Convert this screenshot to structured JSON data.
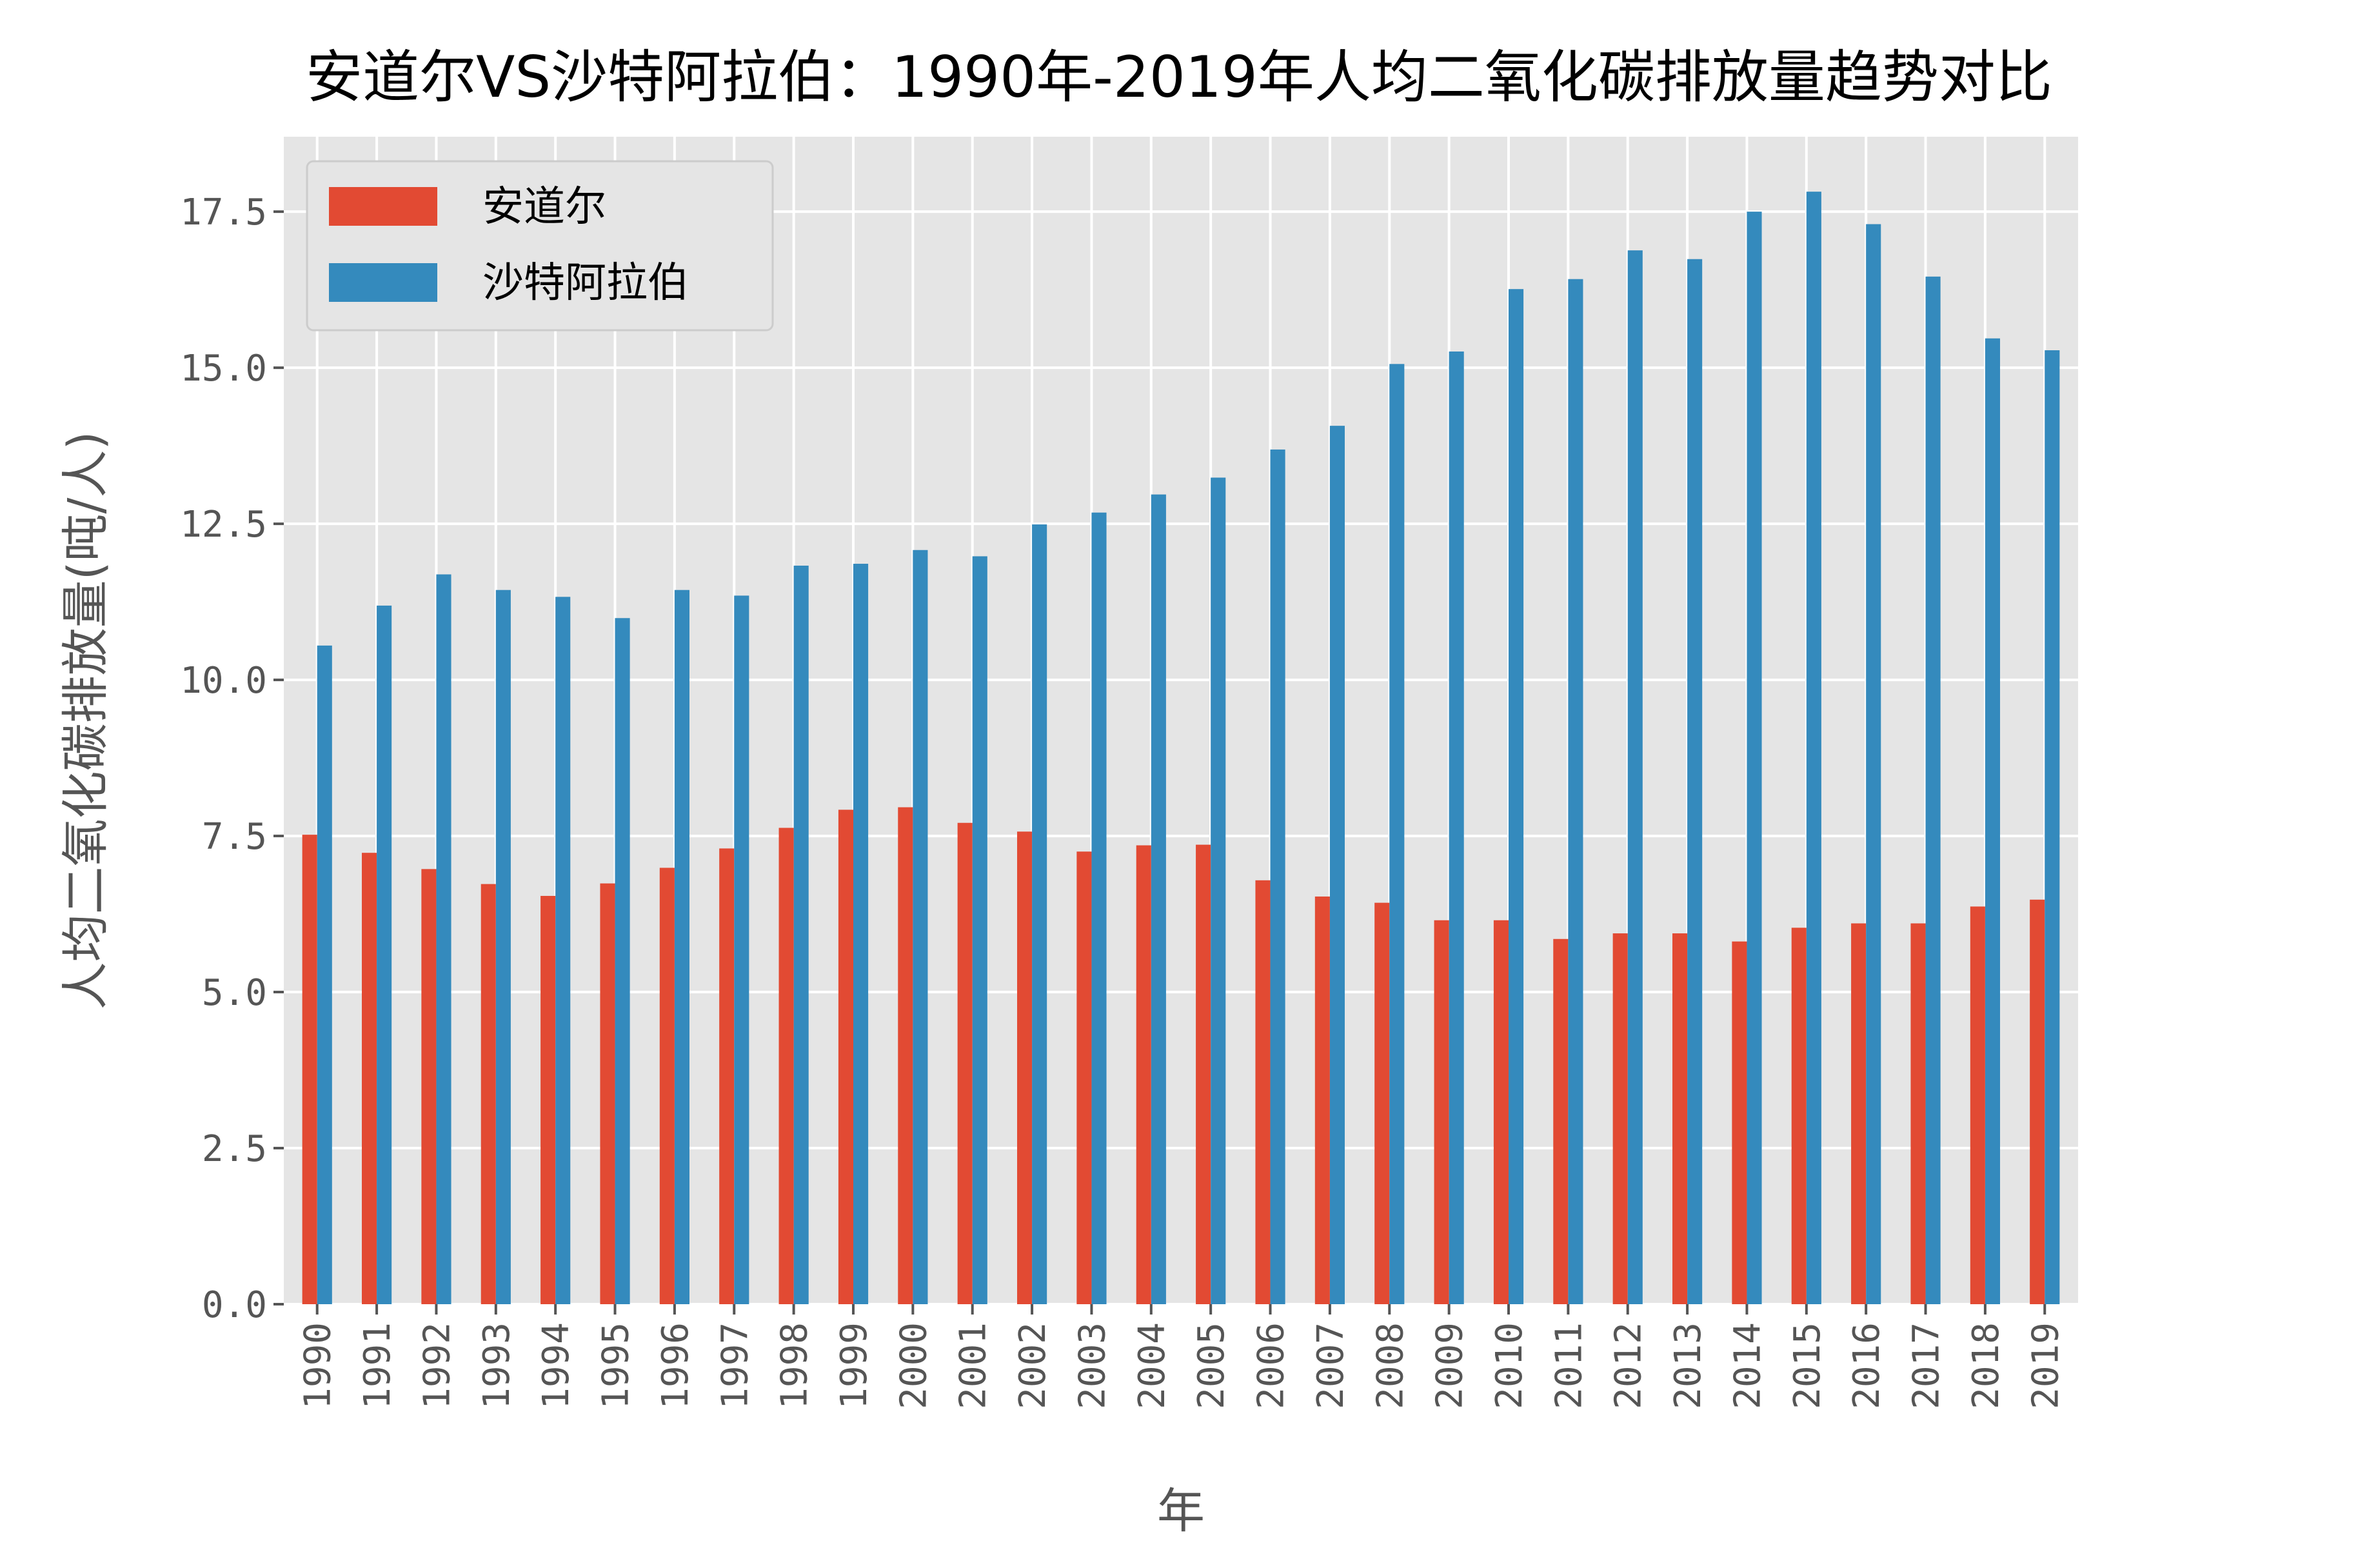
{
  "chart_data": {
    "type": "bar",
    "title": "安道尔VS沙特阿拉伯：1990年-2019年人均二氧化碳排放量趋势对比",
    "xlabel": "年",
    "ylabel": "人均二氧化碳排放量(吨/人)",
    "categories": [
      "1990",
      "1991",
      "1992",
      "1993",
      "1994",
      "1995",
      "1996",
      "1997",
      "1998",
      "1999",
      "2000",
      "2001",
      "2002",
      "2003",
      "2004",
      "2005",
      "2006",
      "2007",
      "2008",
      "2009",
      "2010",
      "2011",
      "2012",
      "2013",
      "2014",
      "2015",
      "2016",
      "2017",
      "2018",
      "2019"
    ],
    "series": [
      {
        "name": "安道尔",
        "color": "#E24A33",
        "values": [
          7.52,
          7.23,
          6.97,
          6.73,
          6.54,
          6.74,
          6.99,
          7.3,
          7.63,
          7.92,
          7.96,
          7.71,
          7.57,
          7.25,
          7.35,
          7.36,
          6.79,
          6.53,
          6.43,
          6.15,
          6.15,
          5.85,
          5.94,
          5.94,
          5.81,
          6.03,
          6.1,
          6.1,
          6.37,
          6.48
        ]
      },
      {
        "name": "沙特阿拉伯",
        "color": "#348ABD",
        "values": [
          10.55,
          11.19,
          11.69,
          11.44,
          11.33,
          10.99,
          11.44,
          11.35,
          11.83,
          11.86,
          12.08,
          11.98,
          12.49,
          12.68,
          12.97,
          13.24,
          13.69,
          14.07,
          15.06,
          15.26,
          16.26,
          16.42,
          16.88,
          16.74,
          17.5,
          17.82,
          17.3,
          16.46,
          15.47,
          15.28
        ]
      }
    ],
    "yticks": [
      "0.0",
      "2.5",
      "5.0",
      "7.5",
      "10.0",
      "12.5",
      "15.0",
      "17.5"
    ],
    "ylim": [
      0,
      18.7
    ],
    "grid": true,
    "legend_position": "upper-left",
    "background": "#E5E5E5",
    "gridline_color": "#FFFFFF"
  }
}
